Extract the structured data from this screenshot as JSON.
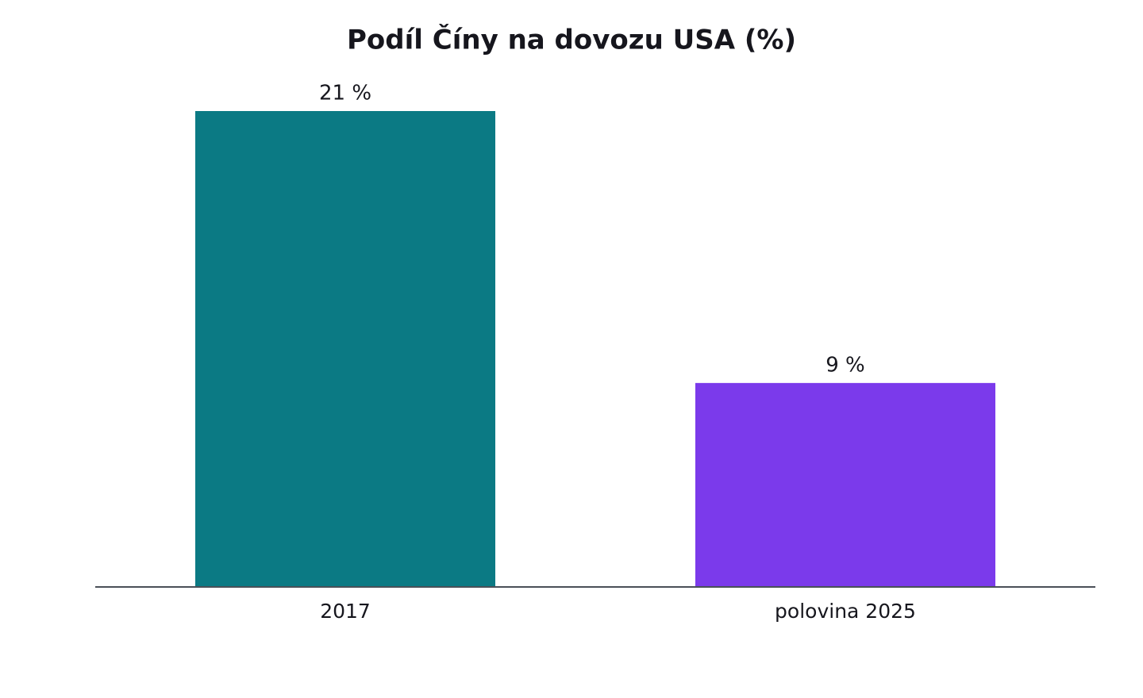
{
  "chart_data": {
    "type": "bar",
    "title": "Podíl Číny na dovozu USA (%)",
    "categories": [
      "2017",
      "polovina 2025"
    ],
    "values": [
      21,
      9
    ],
    "value_labels": [
      "21 %",
      "9 %"
    ],
    "colors": [
      "#0b7a84",
      "#7b3aeb"
    ],
    "ylim": [
      0,
      21
    ]
  }
}
